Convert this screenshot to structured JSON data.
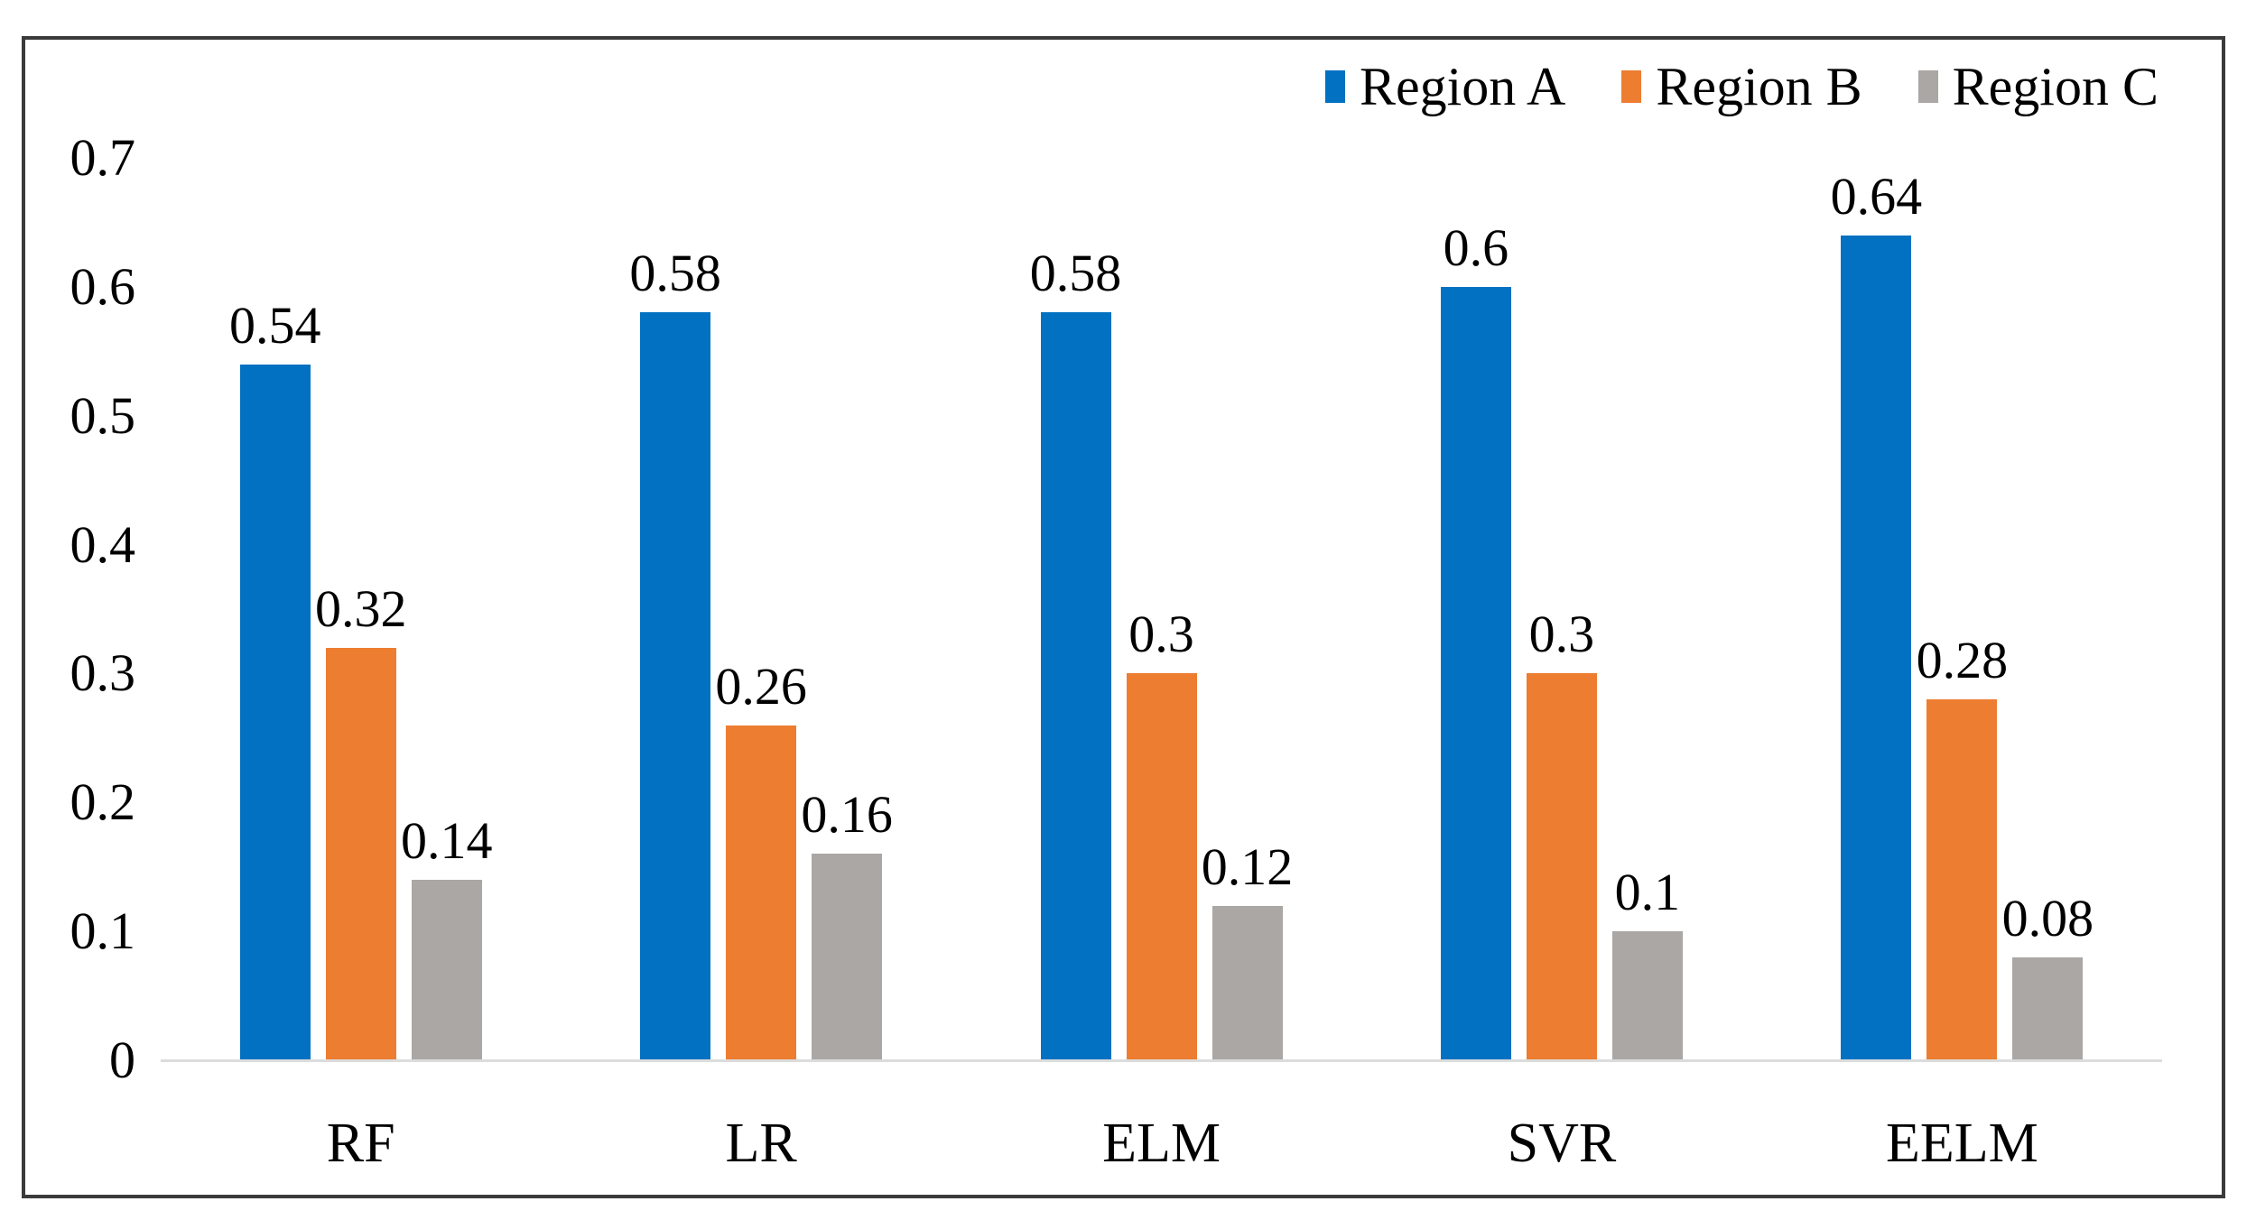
{
  "chart_data": {
    "type": "bar",
    "title": "",
    "xlabel": "",
    "ylabel": "",
    "categories": [
      "RF",
      "LR",
      "ELM",
      "SVR",
      "EELM"
    ],
    "series": [
      {
        "name": "Region A",
        "color": "#0271c2",
        "values": [
          0.54,
          0.58,
          0.58,
          0.6,
          0.64
        ],
        "labels": [
          "0.54",
          "0.58",
          "0.58",
          "0.6",
          "0.64"
        ]
      },
      {
        "name": "Region B",
        "color": "#ed7d31",
        "values": [
          0.32,
          0.26,
          0.3,
          0.3,
          0.28
        ],
        "labels": [
          "0.32",
          "0.26",
          "0.3",
          "0.3",
          "0.28"
        ]
      },
      {
        "name": "Region C",
        "color": "#aaa7a4",
        "values": [
          0.14,
          0.16,
          0.12,
          0.1,
          0.08
        ],
        "labels": [
          "0.14",
          "0.16",
          "0.12",
          "0.1",
          "0.08"
        ]
      }
    ],
    "ylim": [
      0,
      0.7
    ],
    "yticks": [
      0,
      0.1,
      0.2,
      0.3,
      0.4,
      0.5,
      0.6,
      0.7
    ],
    "ytick_labels": [
      "0",
      "0.1",
      "0.2",
      "0.3",
      "0.4",
      "0.5",
      "0.6",
      "0.7"
    ],
    "grid": false,
    "legend_position": "top-right",
    "data_labels_shown": true
  },
  "colors": {
    "background": "#ffffff",
    "frame_border": "#3b3b3b",
    "axis_baseline": "#dcdcdc",
    "text": "#000000"
  }
}
